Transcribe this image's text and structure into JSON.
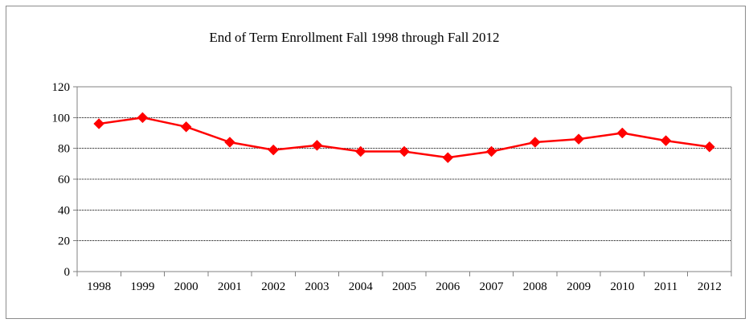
{
  "chart_data": {
    "type": "line",
    "title": "End of Term Enrollment Fall 1998 through Fall 2012",
    "xlabel": "",
    "ylabel": "",
    "categories": [
      "1998",
      "1999",
      "2000",
      "2001",
      "2002",
      "2003",
      "2004",
      "2005",
      "2006",
      "2007",
      "2008",
      "2009",
      "2010",
      "2011",
      "2012"
    ],
    "series": [
      {
        "values": [
          96,
          100,
          94,
          84,
          79,
          82,
          78,
          78,
          74,
          78,
          84,
          86,
          90,
          85,
          81
        ]
      }
    ],
    "ylim": [
      0,
      120
    ],
    "yticks": [
      0,
      20,
      40,
      60,
      80,
      100,
      120
    ],
    "grid": true,
    "legend": "none",
    "colors": {
      "line": "#ff0000",
      "marker": "#ff0000",
      "grid": "#000000",
      "axis": "#808080"
    }
  }
}
